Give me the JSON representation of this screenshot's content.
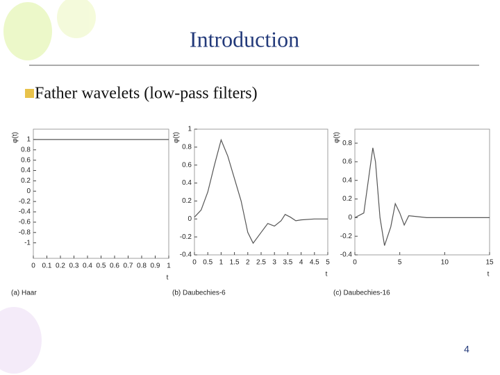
{
  "slide": {
    "title": "Introduction",
    "bullet": "Father wavelets (low-pass filters)",
    "page_number": "4"
  },
  "chart_data": [
    {
      "type": "line",
      "caption": "(a) Haar",
      "xlabel": "t",
      "ylabel": "φ(t)",
      "color": "#555555",
      "x": [
        0,
        1
      ],
      "values": [
        1,
        1
      ],
      "xlim": [
        0,
        1
      ],
      "ylim": [
        -1.3,
        1.2
      ],
      "xticks": [
        0,
        0.1,
        0.2,
        0.3,
        0.4,
        0.5,
        0.6,
        0.7,
        0.8,
        0.9,
        1
      ],
      "yticks": [
        1,
        0.8,
        0.6,
        0.4,
        0.2,
        0,
        -0.2,
        -0.4,
        -0.6,
        -0.8,
        -1
      ]
    },
    {
      "type": "line",
      "caption": "(b) Daubechies-6",
      "xlabel": "t",
      "ylabel": "φ(t)",
      "color": "#555555",
      "x": [
        0,
        0.25,
        0.5,
        0.75,
        1.0,
        1.25,
        1.5,
        1.75,
        2.0,
        2.2,
        2.5,
        2.75,
        3.0,
        3.25,
        3.4,
        3.6,
        3.8,
        4.0,
        4.5,
        5
      ],
      "values": [
        0.02,
        0.1,
        0.3,
        0.6,
        0.88,
        0.7,
        0.45,
        0.2,
        -0.15,
        -0.27,
        -0.15,
        -0.05,
        -0.08,
        -0.02,
        0.05,
        0.02,
        -0.02,
        -0.01,
        0,
        0
      ],
      "xlim": [
        0,
        5
      ],
      "ylim": [
        -0.4,
        1
      ],
      "xticks": [
        0,
        0.5,
        1,
        1.5,
        2,
        2.5,
        3,
        3.5,
        4,
        4.5,
        5
      ],
      "yticks": [
        1,
        0.8,
        0.6,
        0.4,
        0.2,
        0,
        -0.2,
        -0.4
      ]
    },
    {
      "type": "line",
      "caption": "(c) Daubechies-16",
      "xlabel": "t",
      "ylabel": "φ(t)",
      "color": "#555555",
      "x": [
        0,
        1,
        1.5,
        2,
        2.3,
        2.8,
        3.3,
        4,
        4.5,
        5,
        5.5,
        6,
        7,
        8,
        15
      ],
      "values": [
        0,
        0.05,
        0.4,
        0.75,
        0.6,
        0,
        -0.3,
        -0.1,
        0.15,
        0.05,
        -0.08,
        0.02,
        0.01,
        0,
        0
      ],
      "xlim": [
        0,
        15
      ],
      "ylim": [
        -0.4,
        0.95
      ],
      "xticks": [
        0,
        5,
        10,
        15
      ],
      "yticks": [
        0.8,
        0.6,
        0.4,
        0.2,
        0,
        -0.2,
        -0.4
      ]
    }
  ]
}
